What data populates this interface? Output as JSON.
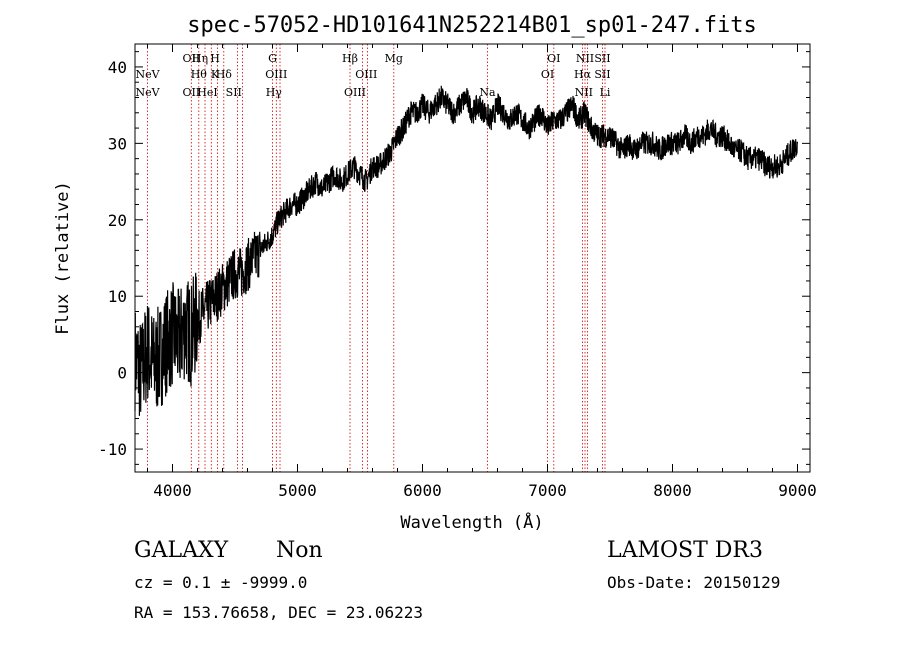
{
  "chart_data": {
    "type": "line",
    "title": "spec-57052-HD101641N252214B01_sp01-247.fits",
    "xlabel": "Wavelength (Å)",
    "ylabel": "Flux (relative)",
    "xlim": [
      3700,
      9100
    ],
    "ylim": [
      -13,
      43
    ],
    "x_ticks": [
      4000,
      5000,
      6000,
      7000,
      8000,
      9000
    ],
    "y_ticks": [
      -10,
      0,
      10,
      20,
      30,
      40
    ],
    "grid": false,
    "legend": "none",
    "line_color": "#000000",
    "marker_color": "#cc0000",
    "series": [
      {
        "x": [
          3700,
          3750,
          3800,
          3850,
          3900,
          3950,
          4000,
          4050,
          4100,
          4150,
          4200,
          4250,
          4300,
          4350,
          4400,
          4450,
          4500,
          4550,
          4600,
          4650,
          4700,
          4750,
          4800,
          4850,
          4900,
          4950,
          5000,
          5050,
          5100,
          5150,
          5200,
          5250,
          5300,
          5350,
          5400,
          5450,
          5500,
          5550,
          5600,
          5650,
          5700,
          5750,
          5800,
          5850,
          5900,
          5950,
          6000,
          6050,
          6100,
          6150,
          6200,
          6250,
          6300,
          6350,
          6400,
          6450,
          6500,
          6550,
          6600,
          6650,
          6700,
          6750,
          6800,
          6850,
          6900,
          6950,
          7000,
          7050,
          7100,
          7150,
          7200,
          7250,
          7300,
          7350,
          7400,
          7450,
          7500,
          7550,
          7600,
          7650,
          7700,
          7750,
          7800,
          7850,
          7900,
          7950,
          8000,
          8050,
          8100,
          8150,
          8200,
          8250,
          8300,
          8350,
          8400,
          8450,
          8500,
          8550,
          8600,
          8650,
          8700,
          8750,
          8800,
          8850,
          8900,
          8950,
          9000
        ],
        "y": [
          2,
          0,
          3,
          1,
          2,
          4,
          5,
          4,
          6,
          5,
          7,
          8,
          9,
          10,
          11,
          12,
          13,
          13,
          14,
          15,
          16,
          17,
          18,
          20,
          21,
          22,
          22,
          23,
          24,
          25,
          24,
          25,
          26,
          25,
          26,
          27,
          26,
          25,
          27,
          27,
          28,
          29,
          31,
          32,
          34,
          34,
          35,
          34,
          35,
          36,
          35,
          34,
          35,
          36,
          34,
          35,
          34,
          33,
          35,
          34,
          33,
          34,
          33,
          32,
          33,
          34,
          32,
          33,
          33,
          34,
          35,
          33,
          34,
          32,
          31,
          31,
          31,
          30,
          29,
          30,
          29,
          30,
          30,
          30,
          29,
          30,
          30,
          30,
          31,
          30,
          31,
          31,
          32,
          31,
          31,
          30,
          29,
          29,
          28,
          28,
          28,
          27,
          27,
          27,
          28,
          29,
          30
        ]
      }
    ],
    "lines": [
      {
        "w": 3800,
        "label": "NeV",
        "row": 2
      },
      {
        "w": 3800,
        "label": "NeV",
        "row": 3
      },
      {
        "w": 4150,
        "label": "OII",
        "row": 1
      },
      {
        "w": 4150,
        "label": "OII",
        "row": 3
      },
      {
        "w": 4220,
        "label": "Hη",
        "row": 1
      },
      {
        "w": 4210,
        "label": "Hθ",
        "row": 2
      },
      {
        "w": 4280,
        "label": "HeI",
        "row": 3
      },
      {
        "w": 4340,
        "label": "H",
        "row": 1
      },
      {
        "w": 4340,
        "label": "K",
        "row": 2
      },
      {
        "w": 4410,
        "label": "Hδ",
        "row": 2
      },
      {
        "w": 4490,
        "label": "SII",
        "row": 3
      },
      {
        "w": 4800,
        "label": "G",
        "row": 1
      },
      {
        "w": 4830,
        "label": "OIII",
        "row": 2
      },
      {
        "w": 4810,
        "label": "Hγ",
        "row": 3
      },
      {
        "w": 5420,
        "label": "Hβ",
        "row": 1
      },
      {
        "w": 5550,
        "label": "OIII",
        "row": 2
      },
      {
        "w": 5460,
        "label": "OIII",
        "row": 3
      },
      {
        "w": 5770,
        "label": "Mg",
        "row": 1
      },
      {
        "w": 6520,
        "label": "Na",
        "row": 3
      },
      {
        "w": 7050,
        "label": "OI",
        "row": 1
      },
      {
        "w": 7000,
        "label": "OI",
        "row": 2
      },
      {
        "w": 7300,
        "label": "NII",
        "row": 1
      },
      {
        "w": 7280,
        "label": "Hα",
        "row": 2
      },
      {
        "w": 7290,
        "label": "NII",
        "row": 3
      },
      {
        "w": 7440,
        "label": "SII",
        "row": 1
      },
      {
        "w": 7440,
        "label": "SII",
        "row": 2
      },
      {
        "w": 7460,
        "label": "Li",
        "row": 3
      }
    ],
    "marker_positions": [
      3800,
      4150,
      4210,
      4260,
      4310,
      4360,
      4410,
      4520,
      4560,
      4800,
      4830,
      4860,
      5420,
      5520,
      5560,
      5770,
      6520,
      7000,
      7050,
      7280,
      7300,
      7320,
      7440,
      7460
    ]
  },
  "info": {
    "class": "GALAXY",
    "subclass": "Non",
    "survey": "LAMOST DR3",
    "cz": "cz = 0.1 ± -9999.0",
    "obs_date": "Obs-Date: 20150129",
    "radec": "RA = 153.76658, DEC =  23.06223"
  }
}
